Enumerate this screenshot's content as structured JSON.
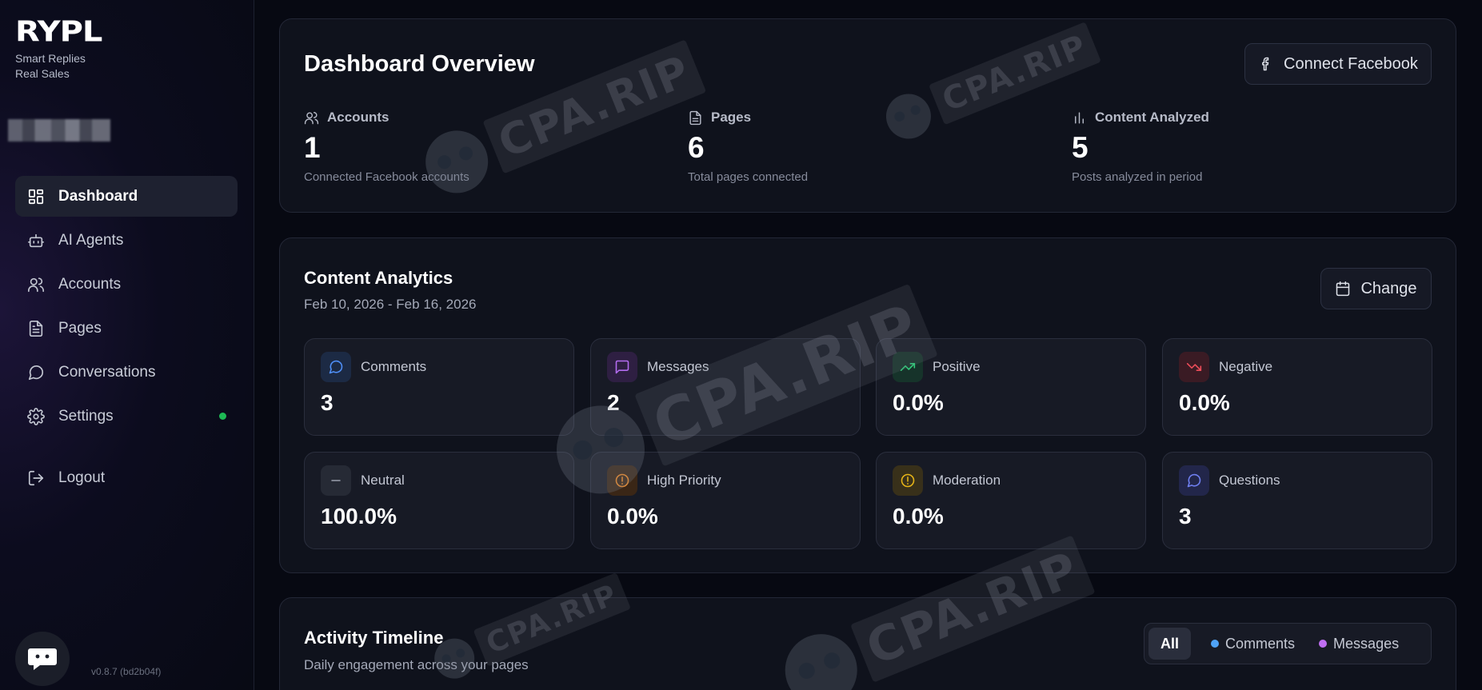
{
  "brand": {
    "logo": "RYPL",
    "tagline_line1": "Smart Replies",
    "tagline_line2": "Real Sales"
  },
  "sidebar": {
    "items": [
      {
        "label": "Dashboard",
        "icon": "dashboard-grid-icon",
        "active": true
      },
      {
        "label": "AI Agents",
        "icon": "bot-icon"
      },
      {
        "label": "Accounts",
        "icon": "users-icon"
      },
      {
        "label": "Pages",
        "icon": "document-icon"
      },
      {
        "label": "Conversations",
        "icon": "chat-bubble-icon"
      },
      {
        "label": "Settings",
        "icon": "gear-icon",
        "status_color": "#1db954"
      }
    ],
    "logout_label": "Logout",
    "version": "v0.8.7 (bd2b04f)"
  },
  "overview": {
    "title": "Dashboard Overview",
    "connect_button": "Connect Facebook",
    "stats": [
      {
        "label": "Accounts",
        "value": "1",
        "sub": "Connected Facebook accounts"
      },
      {
        "label": "Pages",
        "value": "6",
        "sub": "Total pages connected"
      },
      {
        "label": "Content Analyzed",
        "value": "5",
        "sub": "Posts analyzed in period"
      }
    ]
  },
  "analytics": {
    "title": "Content Analytics",
    "date_range": "Feb 10, 2026 - Feb 16, 2026",
    "change_button": "Change",
    "tiles": [
      {
        "label": "Comments",
        "value": "3",
        "icon": "comment-icon",
        "color": "#4f8ff7"
      },
      {
        "label": "Messages",
        "value": "2",
        "icon": "message-icon",
        "color": "#b36cf0"
      },
      {
        "label": "Positive",
        "value": "0.0%",
        "icon": "trending-up-icon",
        "color": "#2fcf7a"
      },
      {
        "label": "Negative",
        "value": "0.0%",
        "icon": "trending-down-icon",
        "color": "#ef4d5a"
      },
      {
        "label": "Neutral",
        "value": "100.0%",
        "icon": "minus-icon",
        "color": "#9aa0ad"
      },
      {
        "label": "High Priority",
        "value": "0.0%",
        "icon": "alert-circle-icon",
        "color": "#f08a24"
      },
      {
        "label": "Moderation",
        "value": "0.0%",
        "icon": "alert-circle-icon",
        "color": "#e6b417"
      },
      {
        "label": "Questions",
        "value": "3",
        "icon": "question-bubble-icon",
        "color": "#6f7ff0"
      }
    ]
  },
  "timeline": {
    "title": "Activity Timeline",
    "subtitle": "Daily engagement across your pages",
    "filters": [
      {
        "label": "All",
        "active": true
      },
      {
        "label": "Comments",
        "color": "#4fa3f7"
      },
      {
        "label": "Messages",
        "color": "#c06ef2"
      }
    ]
  },
  "watermark": {
    "text": "CPA.RIP"
  }
}
